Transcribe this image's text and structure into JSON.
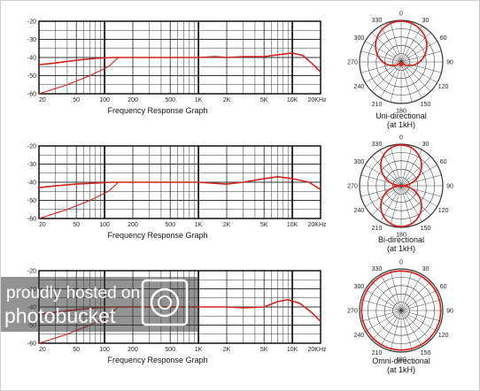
{
  "chart_data": [
    {
      "type": "line",
      "title": "",
      "xlabel": "Frequency Response Graph",
      "ylabel": "",
      "xscale": "log",
      "xlim": [
        20,
        20000
      ],
      "ylim": [
        -60,
        -20
      ],
      "x_ticks": [
        20,
        50,
        100,
        200,
        500,
        1000,
        2000,
        5000,
        10000,
        20000
      ],
      "x_tick_labels": [
        "20",
        "50",
        "100",
        "200",
        "500",
        "1K",
        "2K",
        "5K",
        "10K",
        "20KHz"
      ],
      "y_ticks": [
        -20,
        -30,
        -40,
        -50,
        -60
      ],
      "y_tick_labels": [
        "-20",
        "-30",
        "-40",
        "-50",
        "-60"
      ],
      "grid": true,
      "series": [
        {
          "x": [
            20,
            30,
            50,
            80,
            120,
            200,
            500,
            1000,
            1500,
            2000,
            3000,
            5000,
            7000,
            10000,
            13000,
            16000,
            20000
          ],
          "values": [
            -44,
            -43,
            -41.5,
            -40.5,
            -40,
            -40,
            -40,
            -40,
            -39.5,
            -40,
            -39.5,
            -39.5,
            -38.5,
            -37.5,
            -39,
            -43,
            -48
          ]
        },
        {
          "x": [
            20,
            40,
            70,
            110,
            140
          ],
          "values": [
            -60,
            -55,
            -50,
            -45,
            -40
          ]
        }
      ]
    },
    {
      "type": "polar",
      "caption": [
        "Uni-directional",
        "(at 1kH)"
      ],
      "angle_labels": [
        "0",
        "30",
        "60",
        "90",
        "120",
        "150",
        "180",
        "210",
        "240",
        "270",
        "300",
        "330"
      ],
      "pattern": "cardioid",
      "grid": true
    },
    {
      "type": "line",
      "title": "",
      "xlabel": "Frequency Response Graph",
      "ylabel": "",
      "xscale": "log",
      "xlim": [
        20,
        20000
      ],
      "ylim": [
        -60,
        -20
      ],
      "x_ticks": [
        20,
        50,
        100,
        200,
        500,
        1000,
        2000,
        5000,
        10000,
        20000
      ],
      "x_tick_labels": [
        "20",
        "50",
        "100",
        "200",
        "500",
        "1K",
        "2K",
        "5K",
        "10K",
        "20KHz"
      ],
      "y_ticks": [
        -20,
        -30,
        -40,
        -50,
        -60
      ],
      "y_tick_labels": [
        "-20",
        "-30",
        "-40",
        "-50",
        "-60"
      ],
      "grid": true,
      "series": [
        {
          "x": [
            20,
            30,
            50,
            80,
            120,
            200,
            500,
            1000,
            2000,
            3000,
            5000,
            7000,
            10000,
            15000,
            20000
          ],
          "values": [
            -43,
            -42,
            -41,
            -40.5,
            -40,
            -40,
            -40,
            -40,
            -41,
            -40,
            -38,
            -37,
            -38,
            -40,
            -44
          ]
        },
        {
          "x": [
            20,
            40,
            70,
            110,
            140
          ],
          "values": [
            -60,
            -55,
            -50,
            -45,
            -40
          ]
        }
      ]
    },
    {
      "type": "polar",
      "caption": [
        "Bi-directional",
        "(at 1kH)"
      ],
      "angle_labels": [
        "0",
        "30",
        "60",
        "90",
        "120",
        "150",
        "180",
        "210",
        "240",
        "270",
        "300",
        "330"
      ],
      "pattern": "figure-eight",
      "grid": true
    },
    {
      "type": "line",
      "title": "",
      "xlabel": "Frequency Response Graph",
      "ylabel": "",
      "xscale": "log",
      "xlim": [
        20,
        20000
      ],
      "ylim": [
        -60,
        -20
      ],
      "x_ticks": [
        20,
        50,
        100,
        200,
        500,
        1000,
        2000,
        5000,
        10000,
        20000
      ],
      "x_tick_labels": [
        "20",
        "50",
        "100",
        "200",
        "500",
        "1K",
        "2K",
        "5K",
        "10K",
        "20KHz"
      ],
      "y_ticks": [
        -20,
        -30,
        -40,
        -50,
        -60
      ],
      "y_tick_labels": [
        "-20",
        "-30",
        "-40",
        "-50",
        "-60"
      ],
      "grid": true,
      "series": [
        {
          "x": [
            20,
            30,
            50,
            80,
            120,
            200,
            500,
            1000,
            2000,
            3000,
            5000,
            7000,
            9000,
            12000,
            16000,
            20000
          ],
          "values": [
            -44,
            -43,
            -41.5,
            -40.5,
            -40,
            -40,
            -40,
            -40,
            -40,
            -40.5,
            -40,
            -37,
            -36,
            -38,
            -43,
            -48
          ]
        },
        {
          "x": [
            20,
            40,
            70,
            110,
            140
          ],
          "values": [
            -60,
            -55,
            -50,
            -45,
            -40
          ]
        }
      ]
    },
    {
      "type": "polar",
      "caption": [
        "Omni-directional",
        "(at 1kH)"
      ],
      "angle_labels": [
        "0",
        "30",
        "60",
        "90",
        "120",
        "150",
        "180",
        "210",
        "240",
        "270",
        "300",
        "330"
      ],
      "pattern": "omni",
      "grid": true
    }
  ],
  "colors": {
    "curve": "#d1231c",
    "grid": "#333333",
    "watermark_bg": "#3a3a3a"
  },
  "watermark": {
    "line1": "proudly hosted on",
    "line2": "photobucket",
    "icon": "camera-icon"
  }
}
